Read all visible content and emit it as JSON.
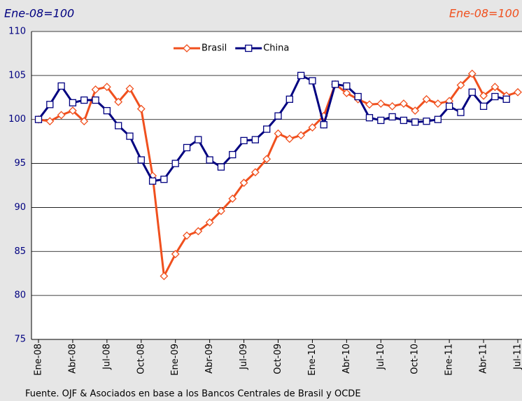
{
  "chart_data": {
    "type": "line",
    "title": "Ene-08=100",
    "subtitle": "Ene-08=100",
    "source": "Fuente. OJF & Asociados en base a los Bancos Centrales de Brasil y OCDE",
    "categories": [
      "Ene-08",
      null,
      null,
      "Abr-08",
      null,
      null,
      "Jul-08",
      null,
      null,
      "Oct-08",
      null,
      null,
      "Ene-09",
      null,
      null,
      "Abr-09",
      null,
      null,
      "Jul-09",
      null,
      null,
      "Oct-09",
      null,
      null,
      "Ene-10",
      null,
      null,
      "Abr-10",
      null,
      null,
      "Jul-10",
      null,
      null,
      "Oct-10",
      null,
      null,
      "Ene-11",
      null,
      null,
      "Abr-11",
      null,
      null,
      "Jul-11"
    ],
    "series": [
      {
        "name": "Brasil",
        "color": "#f0501e",
        "marker": "diamond",
        "values": [
          100,
          99.8,
          100.5,
          101,
          99.8,
          103.4,
          103.7,
          102,
          103.5,
          101.2,
          93.6,
          82.2,
          84.7,
          86.8,
          87.3,
          88.3,
          89.6,
          91,
          92.8,
          94,
          95.5,
          98.4,
          97.8,
          98.2,
          99.1,
          100.4,
          104,
          103,
          102.3,
          101.7,
          101.8,
          101.5,
          101.8,
          101,
          102.3,
          101.8,
          102.1,
          103.9,
          105.2,
          102.7,
          103.7,
          102.7,
          103.1
        ]
      },
      {
        "name": "China",
        "color": "#000080",
        "marker": "square",
        "values": [
          100,
          101.7,
          103.8,
          101.9,
          102.2,
          102.2,
          101,
          99.3,
          98.1,
          95.4,
          93,
          93.2,
          95,
          96.8,
          97.7,
          95.4,
          94.6,
          96,
          97.6,
          97.7,
          98.9,
          100.4,
          102.3,
          105,
          104.4,
          99.4,
          104,
          103.8,
          102.6,
          100.2,
          99.9,
          100.3,
          99.9,
          99.7,
          99.8,
          100,
          101.5,
          100.8,
          103.1,
          101.5,
          102.6,
          102.3,
          null
        ]
      }
    ],
    "ylim": [
      75,
      110
    ],
    "yticks": [
      75,
      80,
      85,
      90,
      95,
      100,
      105,
      110
    ],
    "grid": true
  }
}
